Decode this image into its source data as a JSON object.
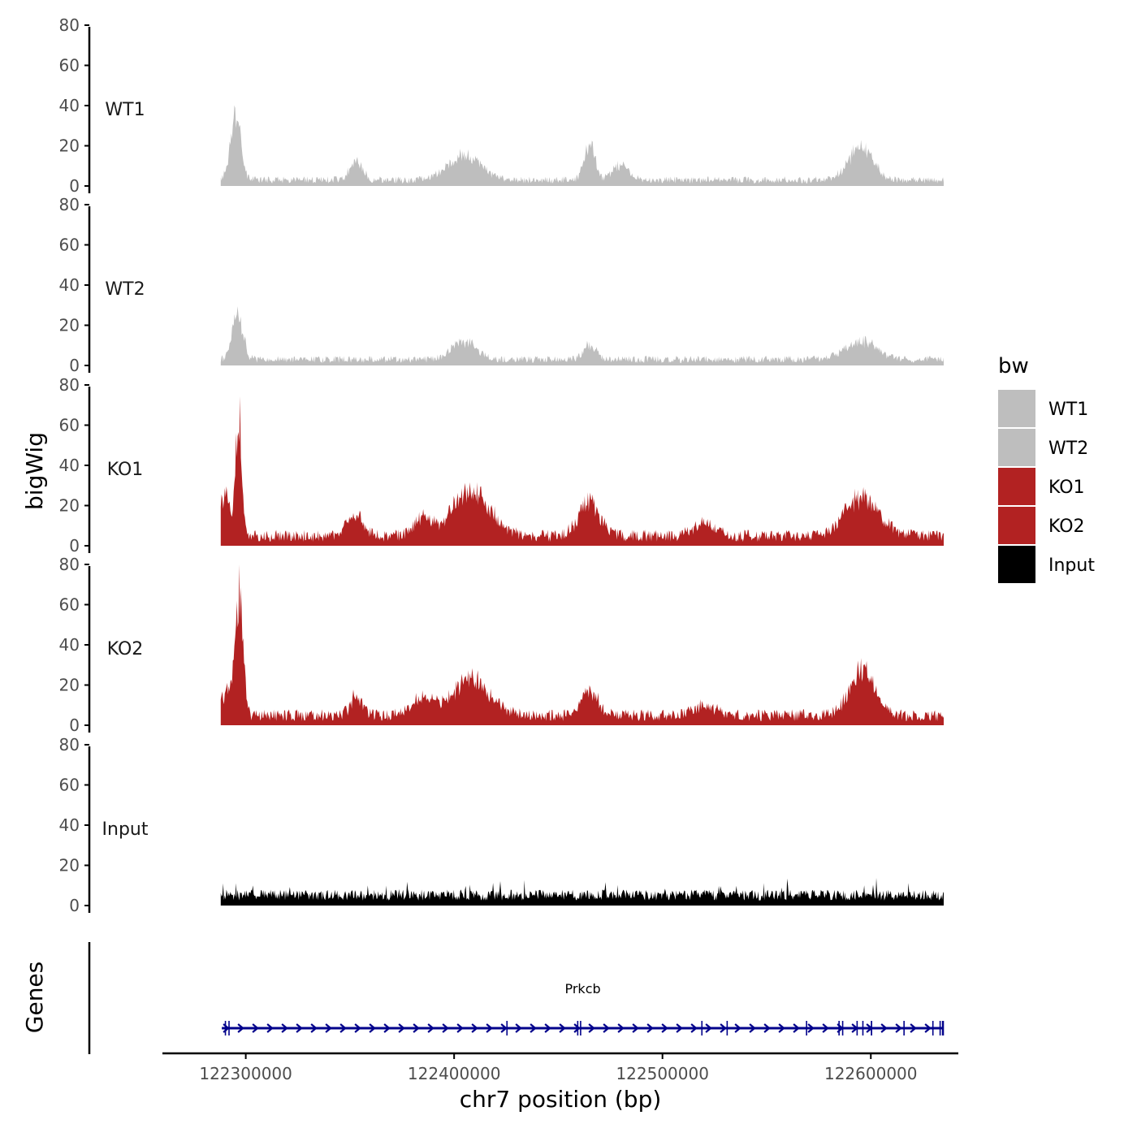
{
  "chart_data": {
    "type": "area",
    "ylabel": "bigWig",
    "xlabel": "chr7 position (bp)",
    "chromosome": "chr7",
    "xlim": [
      122260000,
      122642000
    ],
    "data_range": [
      122288000,
      122635000
    ],
    "x_ticks": [
      122300000,
      122400000,
      122500000,
      122600000
    ],
    "x_tick_labels": [
      "122300000",
      "122400000",
      "122500000",
      "122600000"
    ],
    "ylim": [
      0,
      80
    ],
    "y_ticks": [
      0,
      20,
      40,
      60,
      80
    ],
    "y_tick_labels": [
      "0",
      "20",
      "40",
      "60",
      "80"
    ],
    "tracks": [
      {
        "name": "WT1",
        "color": "#bebebe",
        "baseline": 3,
        "peaks": [
          {
            "x": 122295000,
            "height": 36,
            "width": 2500
          },
          {
            "x": 122353000,
            "height": 12,
            "width": 3000
          },
          {
            "x": 122405000,
            "height": 14,
            "width": 8000
          },
          {
            "x": 122465000,
            "height": 20,
            "width": 2500
          },
          {
            "x": 122480000,
            "height": 8,
            "width": 4000
          },
          {
            "x": 122595000,
            "height": 18,
            "width": 6000
          }
        ]
      },
      {
        "name": "WT2",
        "color": "#bebebe",
        "baseline": 3,
        "peaks": [
          {
            "x": 122296000,
            "height": 28,
            "width": 2500
          },
          {
            "x": 122405000,
            "height": 10,
            "width": 6000
          },
          {
            "x": 122465000,
            "height": 8,
            "width": 3000
          },
          {
            "x": 122595000,
            "height": 10,
            "width": 8000
          }
        ]
      },
      {
        "name": "KO1",
        "color": "#b22222",
        "baseline": 5,
        "peaks": [
          {
            "x": 122296500,
            "height": 70,
            "width": 1500
          },
          {
            "x": 122290000,
            "height": 25,
            "width": 2000
          },
          {
            "x": 122352000,
            "height": 12,
            "width": 4000
          },
          {
            "x": 122385000,
            "height": 10,
            "width": 4000
          },
          {
            "x": 122408000,
            "height": 25,
            "width": 9000
          },
          {
            "x": 122465000,
            "height": 20,
            "width": 5000
          },
          {
            "x": 122520000,
            "height": 8,
            "width": 5000
          },
          {
            "x": 122596000,
            "height": 22,
            "width": 8000
          }
        ]
      },
      {
        "name": "KO2",
        "color": "#b22222",
        "baseline": 5,
        "peaks": [
          {
            "x": 122297000,
            "height": 65,
            "width": 1800
          },
          {
            "x": 122292000,
            "height": 15,
            "width": 3000
          },
          {
            "x": 122353000,
            "height": 10,
            "width": 3000
          },
          {
            "x": 122385000,
            "height": 10,
            "width": 5000
          },
          {
            "x": 122408000,
            "height": 20,
            "width": 9000
          },
          {
            "x": 122465000,
            "height": 15,
            "width": 4000
          },
          {
            "x": 122520000,
            "height": 6,
            "width": 5000
          },
          {
            "x": 122596000,
            "height": 25,
            "width": 6000
          }
        ]
      },
      {
        "name": "Input",
        "color": "#000000",
        "baseline": 5,
        "peaks": []
      }
    ],
    "genes_label": "Genes",
    "gene": {
      "name": "Prkcb",
      "start": 122288500,
      "end": 122635000,
      "strand": "+",
      "color": "#00008b"
    },
    "legend": {
      "title": "bw",
      "entries": [
        {
          "label": "WT1",
          "color": "#bebebe"
        },
        {
          "label": "WT2",
          "color": "#bebebe"
        },
        {
          "label": "KO1",
          "color": "#b22222"
        },
        {
          "label": "KO2",
          "color": "#b22222"
        },
        {
          "label": "Input",
          "color": "#000000"
        }
      ]
    }
  }
}
